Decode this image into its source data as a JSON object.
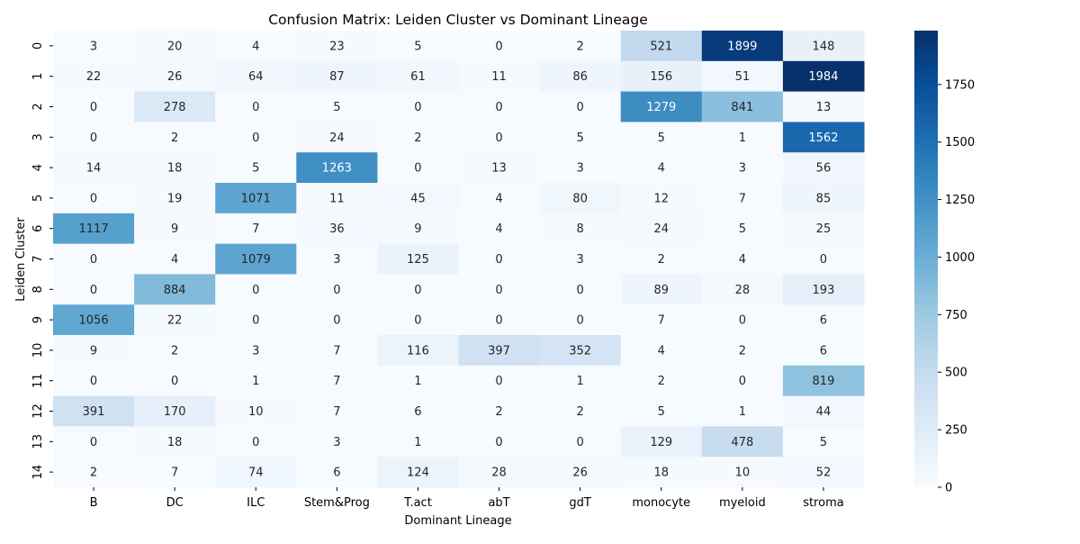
{
  "chart_data": {
    "type": "heatmap",
    "title": "Confusion Matrix: Leiden Cluster vs Dominant Lineage",
    "xlabel": "Dominant Lineage",
    "ylabel": "Leiden Cluster",
    "x_categories": [
      "B",
      "DC",
      "ILC",
      "Stem&Prog",
      "T.act",
      "abT",
      "gdT",
      "monocyte",
      "myeloid",
      "stroma"
    ],
    "y_categories": [
      "0",
      "1",
      "2",
      "3",
      "4",
      "5",
      "6",
      "7",
      "8",
      "9",
      "10",
      "11",
      "12",
      "13",
      "14"
    ],
    "values": [
      [
        3,
        20,
        4,
        23,
        5,
        0,
        2,
        521,
        1899,
        148
      ],
      [
        22,
        26,
        64,
        87,
        61,
        11,
        86,
        156,
        51,
        1984
      ],
      [
        0,
        278,
        0,
        5,
        0,
        0,
        0,
        1279,
        841,
        13
      ],
      [
        0,
        2,
        0,
        24,
        2,
        0,
        5,
        5,
        1,
        1562
      ],
      [
        14,
        18,
        5,
        1263,
        0,
        13,
        3,
        4,
        3,
        56
      ],
      [
        0,
        19,
        1071,
        11,
        45,
        4,
        80,
        12,
        7,
        85
      ],
      [
        1117,
        9,
        7,
        36,
        9,
        4,
        8,
        24,
        5,
        25
      ],
      [
        0,
        4,
        1079,
        3,
        125,
        0,
        3,
        2,
        4,
        0
      ],
      [
        0,
        884,
        0,
        0,
        0,
        0,
        0,
        89,
        28,
        193
      ],
      [
        1056,
        22,
        0,
        0,
        0,
        0,
        0,
        7,
        0,
        6
      ],
      [
        9,
        2,
        3,
        7,
        116,
        397,
        352,
        4,
        2,
        6
      ],
      [
        0,
        0,
        1,
        7,
        1,
        0,
        1,
        2,
        0,
        819
      ],
      [
        391,
        170,
        10,
        7,
        6,
        2,
        2,
        5,
        1,
        44
      ],
      [
        0,
        18,
        0,
        3,
        1,
        0,
        0,
        129,
        478,
        5
      ],
      [
        2,
        7,
        74,
        6,
        124,
        28,
        26,
        18,
        10,
        52
      ]
    ],
    "colormap": "Blues",
    "vmin": 0,
    "vmax": 1984,
    "colorbar_ticks": [
      0,
      250,
      500,
      750,
      1000,
      1250,
      1500,
      1750
    ]
  }
}
